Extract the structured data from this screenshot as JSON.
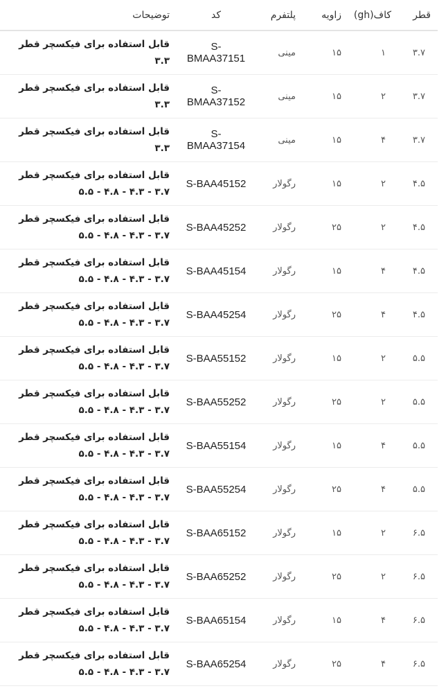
{
  "headers": [
    "قطر",
    "کاف(gh)",
    "زاویه",
    "پلتفرم",
    "کد",
    "توضیحات"
  ],
  "rows": [
    {
      "d": "۳.۷",
      "cuff": "۱",
      "angle": "۱۵",
      "platform": "مینی",
      "code": "S-BMAA37151",
      "desc": "قابل استفاده برای فیکسچر قطر ۳.۳"
    },
    {
      "d": "۳.۷",
      "cuff": "۲",
      "angle": "۱۵",
      "platform": "مینی",
      "code": "S-BMAA37152",
      "desc": "قابل استفاده برای فیکسچر قطر ۳.۳"
    },
    {
      "d": "۳.۷",
      "cuff": "۴",
      "angle": "۱۵",
      "platform": "مینی",
      "code": "S-BMAA37154",
      "desc": "قابل استفاده برای فیکسچر قطر ۳.۳"
    },
    {
      "d": "۴.۵",
      "cuff": "۲",
      "angle": "۱۵",
      "platform": "رگولار",
      "code": "S-BAA45152",
      "desc": "قابل استفاده برای فیکسچر قطر ۳.۷ - ۴.۳ - ۴.۸ - ۵.۵"
    },
    {
      "d": "۴.۵",
      "cuff": "۲",
      "angle": "۲۵",
      "platform": "رگولار",
      "code": "S-BAA45252",
      "desc": "قابل استفاده برای فیکسچر قطر ۳.۷ - ۴.۳ - ۴.۸ - ۵.۵"
    },
    {
      "d": "۴.۵",
      "cuff": "۴",
      "angle": "۱۵",
      "platform": "رگولار",
      "code": "S-BAA45154",
      "desc": "قابل استفاده برای فیکسچر قطر ۳.۷ - ۴.۳ - ۴.۸ - ۵.۵"
    },
    {
      "d": "۴.۵",
      "cuff": "۴",
      "angle": "۲۵",
      "platform": "رگولار",
      "code": "S-BAA45254",
      "desc": "قابل استفاده برای فیکسچر قطر ۳.۷ - ۴.۳ - ۴.۸ - ۵.۵"
    },
    {
      "d": "۵.۵",
      "cuff": "۲",
      "angle": "۱۵",
      "platform": "رگولار",
      "code": "S-BAA55152",
      "desc": "قابل استفاده برای فیکسچر قطر ۳.۷ - ۴.۳ - ۴.۸ - ۵.۵"
    },
    {
      "d": "۵.۵",
      "cuff": "۲",
      "angle": "۲۵",
      "platform": "رگولار",
      "code": "S-BAA55252",
      "desc": "قابل استفاده برای فیکسچر قطر ۳.۷ - ۴.۳ - ۴.۸ - ۵.۵"
    },
    {
      "d": "۵.۵",
      "cuff": "۴",
      "angle": "۱۵",
      "platform": "رگولار",
      "code": "S-BAA55154",
      "desc": "قابل استفاده برای فیکسچر قطر ۳.۷ - ۴.۳ - ۴.۸ - ۵.۵"
    },
    {
      "d": "۵.۵",
      "cuff": "۴",
      "angle": "۲۵",
      "platform": "رگولار",
      "code": "S-BAA55254",
      "desc": "قابل استفاده برای فیکسچر قطر ۳.۷ - ۴.۳ - ۴.۸ - ۵.۵"
    },
    {
      "d": "۶.۵",
      "cuff": "۲",
      "angle": "۱۵",
      "platform": "رگولار",
      "code": "S-BAA65152",
      "desc": "قابل استفاده برای فیکسچر قطر ۳.۷ - ۴.۳ - ۴.۸ - ۵.۵"
    },
    {
      "d": "۶.۵",
      "cuff": "۲",
      "angle": "۲۵",
      "platform": "رگولار",
      "code": "S-BAA65252",
      "desc": "قابل استفاده برای فیکسچر قطر ۳.۷ - ۴.۳ - ۴.۸ - ۵.۵"
    },
    {
      "d": "۶.۵",
      "cuff": "۴",
      "angle": "۱۵",
      "platform": "رگولار",
      "code": "S-BAA65154",
      "desc": "قابل استفاده برای فیکسچر قطر ۳.۷ - ۴.۳ - ۴.۸ - ۵.۵"
    },
    {
      "d": "۶.۵",
      "cuff": "۴",
      "angle": "۲۵",
      "platform": "رگولار",
      "code": "S-BAA65254",
      "desc": "قابل استفاده برای فیکسچر قطر ۳.۷ - ۴.۳ - ۴.۸ - ۵.۵"
    }
  ]
}
